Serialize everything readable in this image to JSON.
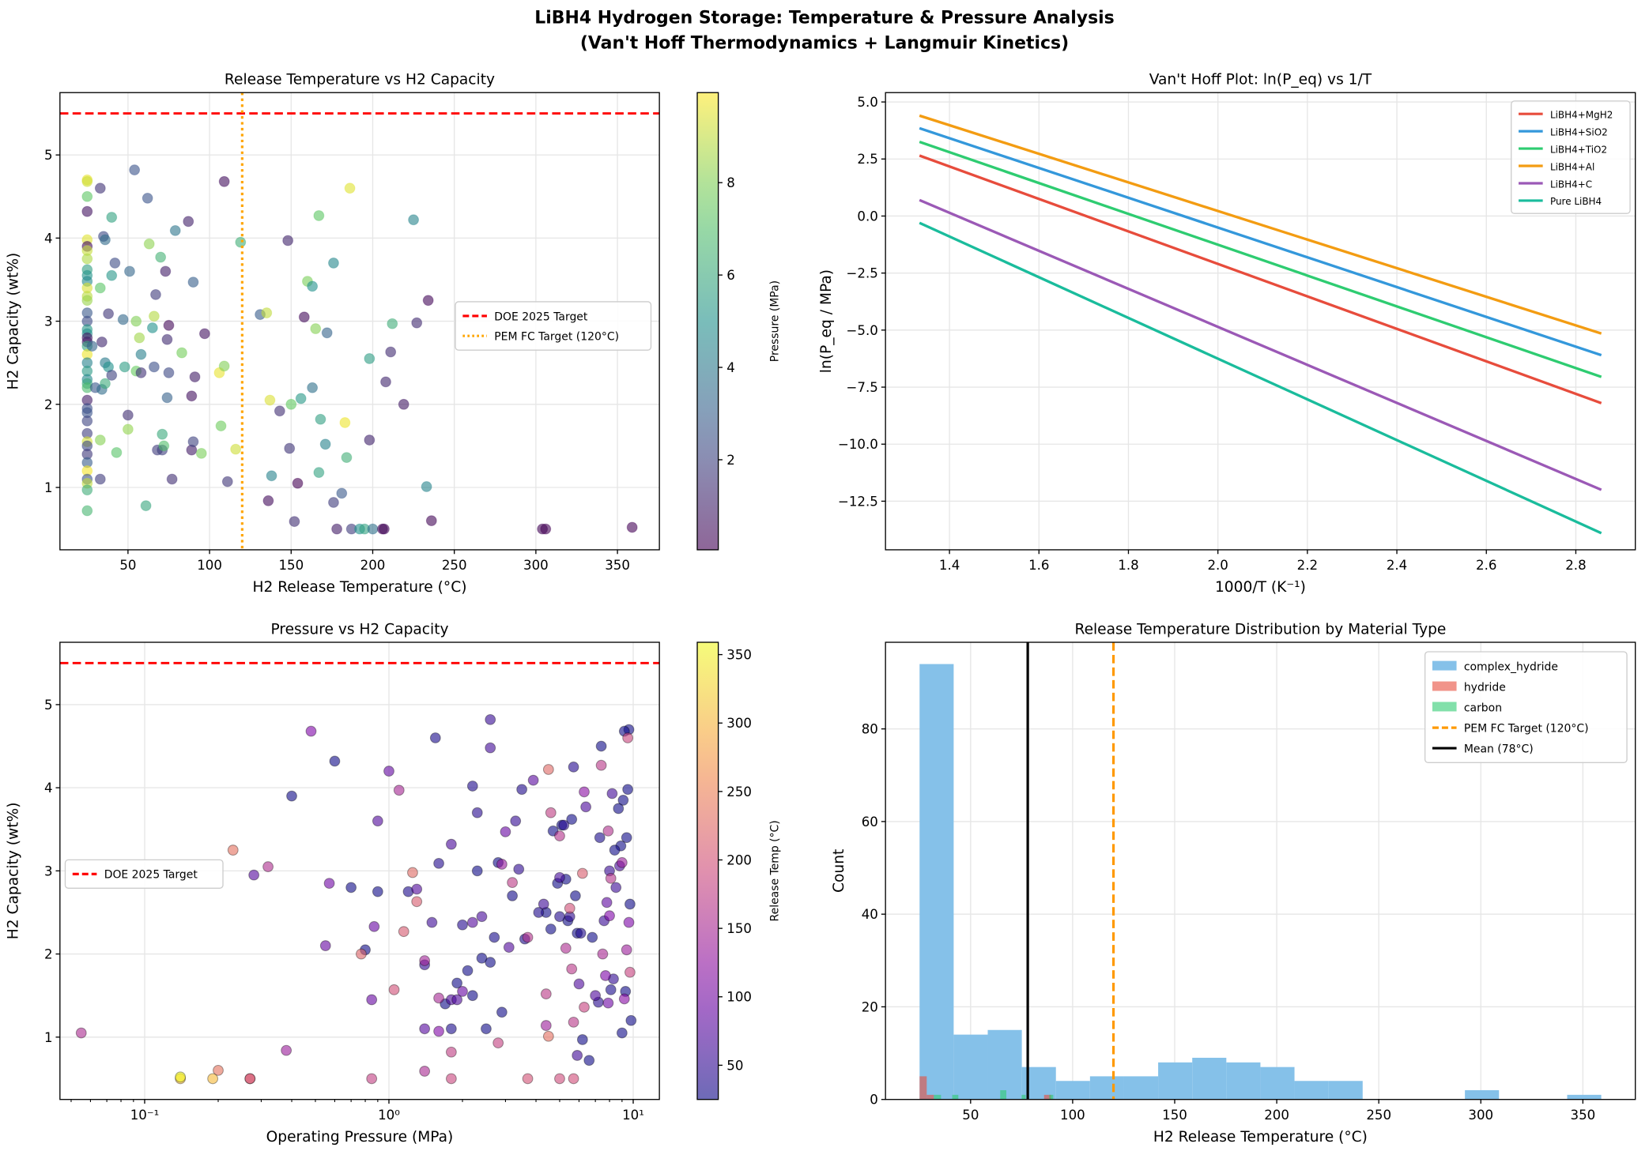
{
  "suptitle": [
    "LiBH4 Hydrogen Storage: Temperature & Pressure Analysis",
    "(Van't Hoff Thermodynamics + Langmuir Kinetics)"
  ],
  "chart_data": [
    {
      "id": "tl",
      "type": "scatter",
      "title": "Release Temperature vs H2 Capacity",
      "xlabel": "H2 Release Temperature (°C)",
      "ylabel": "H2 Capacity (wt%)",
      "xlim": [
        8.3,
        375.7
      ],
      "ylim": [
        0.25,
        5.75
      ],
      "xticks": [
        [
          50,
          "50"
        ],
        [
          100,
          "100"
        ],
        [
          150,
          "150"
        ],
        [
          200,
          "200"
        ],
        [
          250,
          "250"
        ],
        [
          300,
          "300"
        ],
        [
          350,
          "350"
        ]
      ],
      "yticks": [
        [
          1,
          "1"
        ],
        [
          2,
          "2"
        ],
        [
          3,
          "3"
        ],
        [
          4,
          "4"
        ],
        [
          5,
          "5"
        ]
      ],
      "colorbar": {
        "label": "Pressure (MPa)",
        "cmap": "viridis",
        "range": [
          0.05,
          9.95
        ],
        "ticks": [
          [
            2,
            "2"
          ],
          [
            4,
            "4"
          ],
          [
            6,
            "6"
          ],
          [
            8,
            "8"
          ]
        ]
      },
      "hlines": [
        {
          "y": 5.5,
          "color": "#ff0000",
          "style": "dashed",
          "label": "DOE 2025 Target"
        }
      ],
      "vlines": [
        {
          "x": 120,
          "color": "#ffa500",
          "style": "dotted",
          "label": "PEM FC Target (120°C)"
        }
      ],
      "legend_position": "center-right",
      "x_field": "temp",
      "c_field": "pressure"
    },
    {
      "id": "tr",
      "type": "line",
      "title": "Van't Hoff Plot: ln(P_eq) vs 1/T",
      "xlabel": "1000/T (K⁻¹)",
      "ylabel": "ln(P_eq / MPa)",
      "xlim": [
        1.257,
        2.933
      ],
      "ylim": [
        -14.63,
        5.41
      ],
      "xticks": [
        [
          1.4,
          "1.4"
        ],
        [
          1.6,
          "1.6"
        ],
        [
          1.8,
          "1.8"
        ],
        [
          2.0,
          "2.0"
        ],
        [
          2.2,
          "2.2"
        ],
        [
          2.4,
          "2.4"
        ],
        [
          2.6,
          "2.6"
        ],
        [
          2.8,
          "2.8"
        ]
      ],
      "yticks": [
        [
          5,
          "5.0"
        ],
        [
          2.5,
          "2.5"
        ],
        [
          0,
          "0.0"
        ],
        [
          -2.5,
          "−2.5"
        ],
        [
          -5,
          "−5.0"
        ],
        [
          -7.5,
          "−7.5"
        ],
        [
          -10,
          "−10.0"
        ],
        [
          -12.5,
          "−12.5"
        ]
      ],
      "x": [
        1.333,
        2.857
      ],
      "series": [
        {
          "name": "LiBH4+MgH2",
          "color": "#e74c3c",
          "values": [
            2.65,
            -8.2
          ]
        },
        {
          "name": "LiBH4+SiO2",
          "color": "#3498db",
          "values": [
            3.85,
            -6.1
          ]
        },
        {
          "name": "LiBH4+TiO2",
          "color": "#2ecc71",
          "values": [
            3.25,
            -7.05
          ]
        },
        {
          "name": "LiBH4+Al",
          "color": "#f39c12",
          "values": [
            4.4,
            -5.15
          ]
        },
        {
          "name": "LiBH4+C",
          "color": "#9b59b6",
          "values": [
            0.7,
            -12.0
          ]
        },
        {
          "name": "Pure LiBH4",
          "color": "#1abc9c",
          "values": [
            -0.3,
            -13.9
          ]
        }
      ],
      "legend_position": "top-right"
    },
    {
      "id": "bl",
      "type": "scatter",
      "title": "Pressure vs H2 Capacity",
      "xlabel": "Operating Pressure (MPa)",
      "ylabel": "H2 Capacity (wt%)",
      "xscale": "log",
      "xlim": [
        0.045,
        12.8
      ],
      "ylim": [
        0.25,
        5.75
      ],
      "xticks": [
        [
          0.1,
          "10⁻¹"
        ],
        [
          1,
          "10⁰"
        ],
        [
          10,
          "10¹"
        ]
      ],
      "yticks": [
        [
          1,
          "1"
        ],
        [
          2,
          "2"
        ],
        [
          3,
          "3"
        ],
        [
          4,
          "4"
        ],
        [
          5,
          "5"
        ]
      ],
      "colorbar": {
        "label": "Release Temp (°C)",
        "cmap": "plasma",
        "range": [
          25,
          359
        ],
        "ticks": [
          [
            50,
            "50"
          ],
          [
            100,
            "100"
          ],
          [
            150,
            "150"
          ],
          [
            200,
            "200"
          ],
          [
            250,
            "250"
          ],
          [
            300,
            "300"
          ],
          [
            350,
            "350"
          ]
        ]
      },
      "hlines": [
        {
          "y": 5.5,
          "color": "#ff0000",
          "style": "dashed",
          "label": "DOE 2025 Target"
        }
      ],
      "legend_position": "center-left",
      "x_field": "pressure",
      "c_field": "temp"
    },
    {
      "id": "br",
      "type": "bar",
      "title": "Release Temperature Distribution by Material Type",
      "xlabel": "H2 Release Temperature (°C)",
      "ylabel": "Count",
      "xlim": [
        8.3,
        375.7
      ],
      "ylim": [
        0,
        98.7
      ],
      "xticks": [
        [
          50,
          "50"
        ],
        [
          100,
          "100"
        ],
        [
          150,
          "150"
        ],
        [
          200,
          "200"
        ],
        [
          250,
          "250"
        ],
        [
          300,
          "300"
        ],
        [
          350,
          "350"
        ]
      ],
      "yticks": [
        [
          0,
          "0"
        ],
        [
          20,
          "20"
        ],
        [
          40,
          "40"
        ],
        [
          60,
          "60"
        ],
        [
          80,
          "80"
        ]
      ],
      "series": [
        {
          "name": "complex_hydride",
          "color": "#85c1e9",
          "bin_start": 25,
          "bin_width": 16.7,
          "values": [
            94,
            14,
            15,
            7,
            4,
            5,
            5,
            8,
            9,
            8,
            7,
            4,
            4,
            0,
            0,
            0,
            2,
            0,
            0,
            1
          ]
        },
        {
          "name": "hydride",
          "color": "#e74c3c",
          "bins": [
            [
              25,
              28.5,
              5
            ],
            [
              28.5,
              32,
              1
            ],
            [
              86,
              89.5,
              1
            ]
          ]
        },
        {
          "name": "carbon",
          "color": "#2ecc71",
          "bins": [
            [
              32,
              35.5,
              1
            ],
            [
              41,
              44,
              1
            ],
            [
              64.5,
              67.5,
              2
            ],
            [
              75,
              77,
              1
            ],
            [
              88.5,
              90.5,
              1
            ]
          ]
        }
      ],
      "vlines": [
        {
          "x": 120,
          "color": "#ff9900",
          "style": "dashed",
          "label": "PEM FC Target (120°C)"
        },
        {
          "x": 78,
          "color": "#000000",
          "style": "solid",
          "label": "Mean (78°C)"
        }
      ],
      "legend_position": "top-right"
    }
  ],
  "points_fields": [
    "temp",
    "capacity",
    "pressure"
  ],
  "points": [
    [
      25,
      4.7,
      9.6
    ],
    [
      25,
      4.68,
      9.2
    ],
    [
      25,
      4.5,
      7.4
    ],
    [
      25,
      4.32,
      0.6
    ],
    [
      25,
      3.98,
      9.5
    ],
    [
      25,
      3.9,
      0.4
    ],
    [
      25,
      3.85,
      9.1
    ],
    [
      25,
      3.75,
      8.7
    ],
    [
      25,
      3.62,
      5.6
    ],
    [
      25,
      3.55,
      5.1
    ],
    [
      25,
      3.48,
      4.7
    ],
    [
      25,
      3.4,
      9.4
    ],
    [
      25,
      3.3,
      8.9
    ],
    [
      25,
      3.25,
      8.4
    ],
    [
      25,
      3.1,
      2.8
    ],
    [
      25,
      3.0,
      2.3
    ],
    [
      25,
      2.9,
      5.3
    ],
    [
      25,
      2.85,
      4.9
    ],
    [
      25,
      2.8,
      0.7
    ],
    [
      25,
      2.75,
      0.9
    ],
    [
      25,
      2.7,
      5.8
    ],
    [
      25,
      2.6,
      9.7
    ],
    [
      25,
      2.5,
      4.4
    ],
    [
      25,
      2.4,
      5.4
    ],
    [
      25,
      2.3,
      4.6
    ],
    [
      25,
      2.25,
      5.9
    ],
    [
      25,
      2.2,
      6.8
    ],
    [
      25,
      2.05,
      0.8
    ],
    [
      25,
      1.95,
      2.4
    ],
    [
      25,
      1.9,
      2.6
    ],
    [
      25,
      1.8,
      2.1
    ],
    [
      25,
      1.65,
      1.9
    ],
    [
      25,
      1.55,
      9.3
    ],
    [
      25,
      1.5,
      2.2
    ],
    [
      25,
      1.4,
      1.7
    ],
    [
      25,
      1.3,
      2.9
    ],
    [
      25,
      1.2,
      9.8
    ],
    [
      25,
      1.1,
      2.5
    ],
    [
      25,
      1.05,
      9.0
    ],
    [
      25,
      0.97,
      6.2
    ],
    [
      25,
      0.72,
      6.6
    ],
    [
      33,
      4.6,
      1.55
    ],
    [
      35,
      4.02,
      2.2
    ],
    [
      36,
      3.98,
      3.5
    ],
    [
      40,
      4.25,
      5.7
    ],
    [
      42,
      3.7,
      2.3
    ],
    [
      40,
      3.55,
      5.2
    ],
    [
      38,
      3.09,
      1.6
    ],
    [
      33,
      3.4,
      7.3
    ],
    [
      34,
      2.75,
      1.2
    ],
    [
      36,
      2.5,
      4.1
    ],
    [
      38,
      2.45,
      5.0
    ],
    [
      28,
      2.7,
      3.2
    ],
    [
      30,
      2.2,
      2.7
    ],
    [
      34,
      2.18,
      3.6
    ],
    [
      36,
      2.25,
      6.1
    ],
    [
      40,
      2.35,
      2.0
    ],
    [
      33,
      1.57,
      8.1
    ],
    [
      33,
      1.1,
      1.8
    ],
    [
      43,
      1.42,
      7.2
    ],
    [
      47,
      3.02,
      3.4
    ],
    [
      48,
      2.45,
      5.5
    ],
    [
      50,
      1.87,
      1.4
    ],
    [
      50,
      1.7,
      8.3
    ],
    [
      51,
      3.6,
      3.3
    ],
    [
      54,
      4.82,
      2.6
    ],
    [
      55,
      3.0,
      8.0
    ],
    [
      55,
      2.4,
      7.6
    ],
    [
      57,
      2.8,
      8.5
    ],
    [
      58,
      2.38,
      1.5
    ],
    [
      58,
      2.6,
      4.3
    ],
    [
      61,
      0.78,
      5.9
    ],
    [
      62,
      4.48,
      2.6
    ],
    [
      63,
      3.93,
      8.2
    ],
    [
      65,
      2.92,
      5.0
    ],
    [
      66,
      3.06,
      8.8
    ],
    [
      66,
      2.45,
      2.4
    ],
    [
      67,
      3.32,
      1.8
    ],
    [
      68,
      1.45,
      1.8
    ],
    [
      70,
      3.77,
      6.4
    ],
    [
      71,
      1.64,
      6.0
    ],
    [
      71,
      1.45,
      1.9
    ],
    [
      72,
      1.5,
      7.0
    ],
    [
      73,
      3.6,
      0.9
    ],
    [
      74,
      2.08,
      3.1
    ],
    [
      74,
      2.78,
      1.3
    ],
    [
      75,
      2.38,
      2.2
    ],
    [
      75,
      2.95,
      0.28
    ],
    [
      77,
      1.1,
      1.4
    ],
    [
      79,
      4.09,
      3.9
    ],
    [
      83,
      2.62,
      7.8
    ],
    [
      87,
      4.2,
      1.0
    ],
    [
      89,
      1.45,
      0.85
    ],
    [
      89,
      2.1,
      0.55
    ],
    [
      90,
      3.47,
      3.0
    ],
    [
      90,
      1.55,
      2.0
    ],
    [
      91,
      2.33,
      0.87
    ],
    [
      95,
      1.41,
      7.9
    ],
    [
      97,
      2.85,
      0.57
    ],
    [
      106,
      2.38,
      9.6
    ],
    [
      107,
      1.74,
      7.7
    ],
    [
      109,
      2.46,
      8.0
    ],
    [
      109,
      4.68,
      0.48
    ],
    [
      111,
      1.07,
      1.6
    ],
    [
      116,
      1.46,
      9.2
    ],
    [
      119,
      3.95,
      6.3
    ],
    [
      131,
      3.08,
      2.9
    ],
    [
      135,
      3.1,
      9.0
    ],
    [
      136,
      0.84,
      0.38
    ],
    [
      137,
      2.05,
      9.4
    ],
    [
      138,
      1.14,
      4.4
    ],
    [
      143,
      1.92,
      1.4
    ],
    [
      148,
      3.97,
      1.1
    ],
    [
      149,
      1.47,
      1.6
    ],
    [
      150,
      2.0,
      7.5
    ],
    [
      152,
      0.59,
      1.4
    ],
    [
      154,
      1.05,
      0.055
    ],
    [
      156,
      2.07,
      5.3
    ],
    [
      158,
      3.05,
      0.32
    ],
    [
      160,
      3.48,
      7.9
    ],
    [
      163,
      3.42,
      5.0
    ],
    [
      163,
      2.2,
      3.7
    ],
    [
      165,
      2.91,
      8.1
    ],
    [
      167,
      4.27,
      7.4
    ],
    [
      167,
      1.18,
      5.7
    ],
    [
      168,
      1.82,
      5.6
    ],
    [
      171,
      1.52,
      4.4
    ],
    [
      172,
      2.86,
      3.2
    ],
    [
      176,
      3.7,
      4.6
    ],
    [
      176,
      0.82,
      1.8
    ],
    [
      178,
      0.5,
      0.85
    ],
    [
      181,
      0.93,
      2.8
    ],
    [
      183,
      1.78,
      9.7
    ],
    [
      184,
      1.36,
      6.3
    ],
    [
      186,
      4.6,
      9.5
    ],
    [
      187,
      0.5,
      1.8
    ],
    [
      192,
      0.5,
      5.0
    ],
    [
      195,
      0.5,
      5.7
    ],
    [
      198,
      2.55,
      5.5
    ],
    [
      198,
      1.57,
      1.05
    ],
    [
      200,
      0.5,
      3.7
    ],
    [
      206,
      0.5,
      0.27
    ],
    [
      207,
      0.5,
      0.27
    ],
    [
      208,
      2.27,
      1.15
    ],
    [
      211,
      2.63,
      1.3
    ],
    [
      212,
      2.97,
      6.2
    ],
    [
      219,
      2.0,
      0.77
    ],
    [
      225,
      4.22,
      4.5
    ],
    [
      227,
      2.98,
      1.25
    ],
    [
      233,
      1.01,
      4.5
    ],
    [
      234,
      3.25,
      0.23
    ],
    [
      236,
      0.6,
      0.2
    ],
    [
      304,
      0.5,
      0.19
    ],
    [
      306,
      0.5,
      0.14
    ],
    [
      359,
      0.52,
      0.14
    ]
  ]
}
